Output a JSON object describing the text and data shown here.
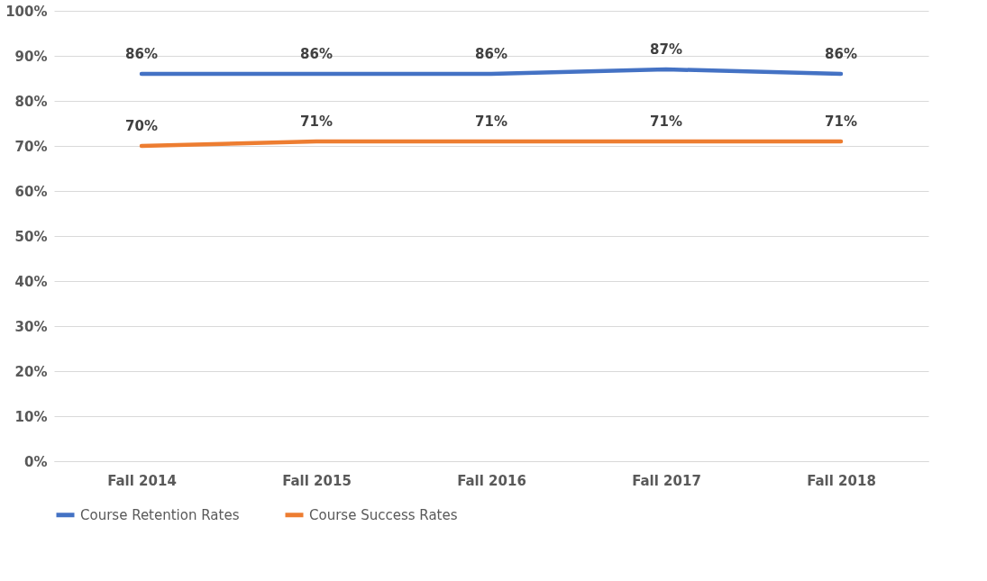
{
  "chart_data": {
    "type": "line",
    "categories": [
      "Fall 2014",
      "Fall 2015",
      "Fall 2016",
      "Fall 2017",
      "Fall 2018"
    ],
    "series": [
      {
        "name": "Course Retention Rates",
        "color": "#4472c4",
        "values": [
          86,
          86,
          86,
          87,
          86
        ],
        "value_labels": [
          "86%",
          "86%",
          "86%",
          "87%",
          "86%"
        ]
      },
      {
        "name": "Course Success Rates",
        "color": "#ed7d31",
        "values": [
          70,
          71,
          71,
          71,
          71
        ],
        "value_labels": [
          "70%",
          "71%",
          "71%",
          "71%",
          "71%"
        ]
      }
    ],
    "ylim": [
      0,
      100
    ],
    "yticks": [
      {
        "value": 0,
        "label": "0%"
      },
      {
        "value": 10,
        "label": "10%"
      },
      {
        "value": 20,
        "label": "20%"
      },
      {
        "value": 30,
        "label": "30%"
      },
      {
        "value": 40,
        "label": "40%"
      },
      {
        "value": 50,
        "label": "50%"
      },
      {
        "value": 60,
        "label": "60%"
      },
      {
        "value": 70,
        "label": "70%"
      },
      {
        "value": 80,
        "label": "80%"
      },
      {
        "value": 90,
        "label": "90%"
      },
      {
        "value": 100,
        "label": "100%"
      }
    ],
    "grid": "y",
    "legend": "bottom",
    "marker": "none",
    "line_style": "solid"
  }
}
